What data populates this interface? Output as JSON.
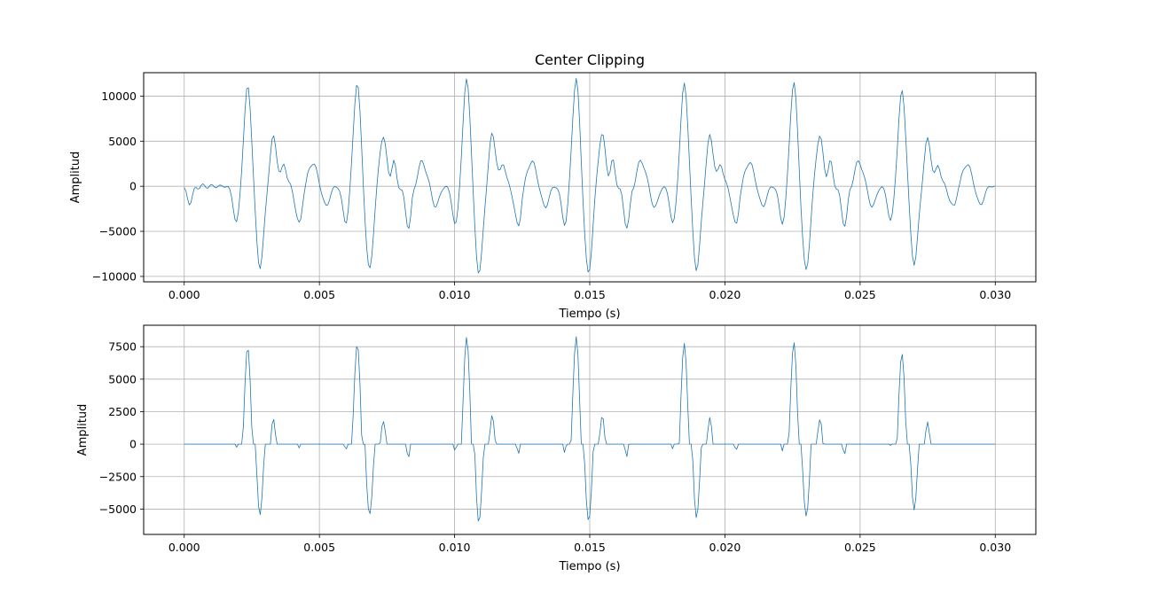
{
  "chart_data": [
    {
      "type": "line",
      "title": "Center Clipping",
      "xlabel": "Tiempo (s)",
      "ylabel": "Amplitud",
      "xlim": [
        -0.0015,
        0.0315
      ],
      "ylim": [
        -10600,
        12600
      ],
      "xticks": [
        0.0,
        0.005,
        0.01,
        0.015,
        0.02,
        0.025,
        0.03
      ],
      "xtick_labels": [
        "0.000",
        "0.005",
        "0.010",
        "0.015",
        "0.020",
        "0.025",
        "0.030"
      ],
      "yticks": [
        -10000,
        -5000,
        0,
        5000,
        10000
      ],
      "ytick_labels": [
        "−10000",
        "−5000",
        "0",
        "5000",
        "10000"
      ],
      "grid": true,
      "line_color": "#1f77b4",
      "pitch_period_s": 0.004025,
      "x_range": [
        0.0,
        0.03
      ],
      "sample_step_s": 6.25e-05,
      "series": [
        {
          "pulses": [
            {
              "t": 0.00235,
              "amp": 11200
            },
            {
              "t": 0.0064,
              "amp": 11500
            },
            {
              "t": 0.01045,
              "amp": 12000
            },
            {
              "t": 0.0145,
              "amp": 12000
            },
            {
              "t": 0.0185,
              "amp": 11500
            },
            {
              "t": 0.02255,
              "amp": 11600
            },
            {
              "t": 0.02655,
              "amp": 10700
            }
          ]
        }
      ]
    },
    {
      "type": "line",
      "title": "",
      "xlabel": "Tiempo (s)",
      "ylabel": "Amplitud",
      "xlim": [
        -0.0015,
        0.0315
      ],
      "ylim": [
        -6950,
        9150
      ],
      "xticks": [
        0.0,
        0.005,
        0.01,
        0.015,
        0.02,
        0.025,
        0.03
      ],
      "xtick_labels": [
        "0.000",
        "0.005",
        "0.010",
        "0.015",
        "0.020",
        "0.025",
        "0.030"
      ],
      "yticks": [
        -5000,
        -2500,
        0,
        2500,
        5000,
        7500
      ],
      "ytick_labels": [
        "−5000",
        "−2500",
        "0",
        "2500",
        "5000",
        "7500"
      ],
      "grid": true,
      "line_color": "#1f77b4",
      "clip_threshold": 3700
    }
  ]
}
